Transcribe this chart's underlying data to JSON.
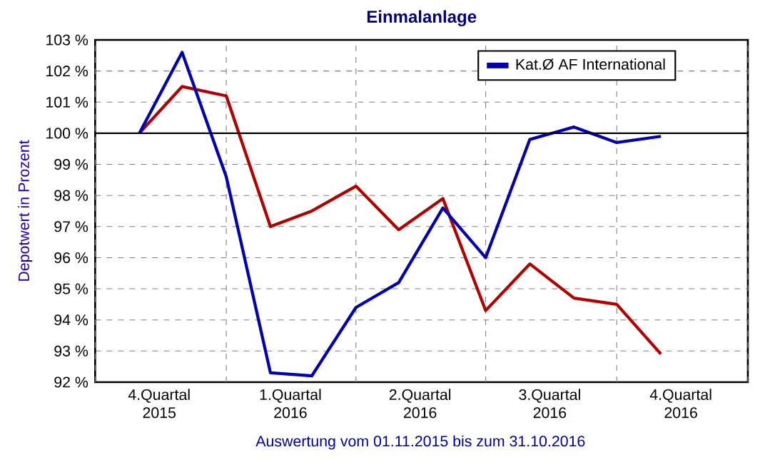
{
  "chart_data": {
    "type": "line",
    "title": "Einmalanlage",
    "ylabel": "Depotwert in Prozent",
    "annotations": [
      "Auswertung vom 01.11.2015 bis zum 31.10.2016"
    ],
    "x": [
      "2015-11-01",
      "2015-12-01",
      "2016-01-01",
      "2016-02-01",
      "2016-03-01",
      "2016-04-01",
      "2016-05-01",
      "2016-06-01",
      "2016-07-01",
      "2016-08-01",
      "2016-09-01",
      "2016-10-01",
      "2016-11-01"
    ],
    "series": [
      {
        "color": "#b00000",
        "values": [
          100,
          101.5,
          101.2,
          97.0,
          97.5,
          98.3,
          96.9,
          97.9,
          94.3,
          95.8,
          94.7,
          94.5,
          92.9
        ]
      },
      {
        "name": "Kat.Ø AF International",
        "color": "#0000b0",
        "values": [
          100,
          102.6,
          98.6,
          92.3,
          92.2,
          94.4,
          95.2,
          97.6,
          96.0,
          99.8,
          100.2,
          99.7,
          99.9
        ]
      }
    ],
    "xlim": [
      "2015-10-01",
      "2017-01-01"
    ],
    "xticks": [
      {
        "value": "2015-10-01",
        "label": null
      },
      {
        "value": "2015-11-15",
        "label": "4.Quartal 2015"
      },
      {
        "value": "2016-01-01",
        "label": null
      },
      {
        "value": "2016-02-15",
        "label": "1.Quartal 2016"
      },
      {
        "value": "2016-04-01",
        "label": null
      },
      {
        "value": "2016-05-16",
        "label": "2.Quartal 2016"
      },
      {
        "value": "2016-07-01",
        "label": null
      },
      {
        "value": "2016-08-15",
        "label": "3.Quartal 2016"
      },
      {
        "value": "2016-10-01",
        "label": null
      },
      {
        "value": "2016-11-15",
        "label": "4.Quartal 2016"
      },
      {
        "value": "2017-01-01",
        "label": null
      }
    ],
    "ylim": [
      92,
      103
    ],
    "yticks": [
      {
        "value": 92,
        "label": "92 %"
      },
      {
        "value": 93,
        "label": "93 %"
      },
      {
        "value": 94,
        "label": "94 %"
      },
      {
        "value": 95,
        "label": "95 %"
      },
      {
        "value": 96,
        "label": "96 %"
      },
      {
        "value": 97,
        "label": "97 %"
      },
      {
        "value": 98,
        "label": "98 %"
      },
      {
        "value": 99,
        "label": "99 %"
      },
      {
        "value": 100,
        "label": "100 %"
      },
      {
        "value": 101,
        "label": "101 %"
      },
      {
        "value": 102,
        "label": "102 %"
      },
      {
        "value": 103,
        "label": "103 %"
      }
    ],
    "ref_lines": [
      {
        "axis": "y",
        "value": 100,
        "color": "#000000",
        "line_style": "solid"
      }
    ],
    "grid": true,
    "legend": "top right",
    "marker": "none",
    "line_style": "solid"
  }
}
